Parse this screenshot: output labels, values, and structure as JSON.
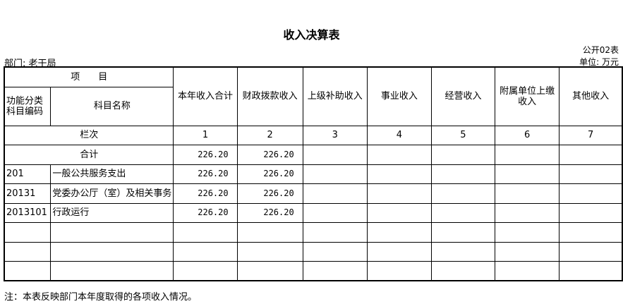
{
  "title": "收入决算表",
  "form_no": "公开02表",
  "department": "部门: 老干局",
  "unit": "单位: 万元",
  "header": {
    "item": "项　　目",
    "code": "功能分类科目编码",
    "name": "科目名称",
    "columns": [
      "本年收入合计",
      "财政拨款收入",
      "上级补助收入",
      "事业收入",
      "经营收入",
      "附属单位上缴收入",
      "其他收入"
    ],
    "row_index_label": "栏次",
    "row_index": [
      "1",
      "2",
      "3",
      "4",
      "5",
      "6",
      "7"
    ]
  },
  "total": {
    "label": "合计",
    "values": [
      "226.20",
      "226.20",
      "",
      "",
      "",
      "",
      ""
    ]
  },
  "rows": [
    {
      "code": "201",
      "name": "一般公共服务支出",
      "values": [
        "226.20",
        "226.20",
        "",
        "",
        "",
        "",
        ""
      ]
    },
    {
      "code": "20131",
      "name": "党委办公厅（室）及相关事务",
      "values": [
        "226.20",
        "226.20",
        "",
        "",
        "",
        "",
        ""
      ]
    },
    {
      "code": "2013101",
      "name": "行政运行",
      "values": [
        "226.20",
        "226.20",
        "",
        "",
        "",
        "",
        ""
      ]
    },
    {
      "code": "",
      "name": "",
      "values": [
        "",
        "",
        "",
        "",
        "",
        "",
        ""
      ]
    },
    {
      "code": "",
      "name": "",
      "values": [
        "",
        "",
        "",
        "",
        "",
        "",
        ""
      ]
    },
    {
      "code": "",
      "name": "",
      "values": [
        "",
        "",
        "",
        "",
        "",
        "",
        ""
      ]
    }
  ],
  "note": "注：本表反映部门本年度取得的各项收入情况。"
}
